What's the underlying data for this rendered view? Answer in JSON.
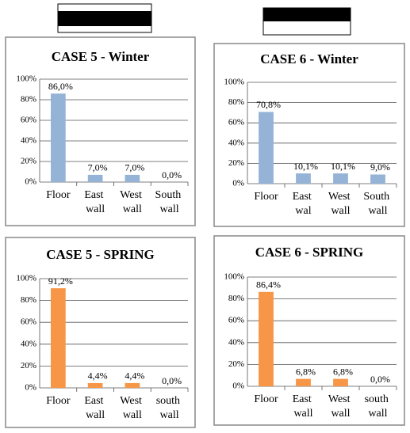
{
  "chart_data": [
    {
      "type": "bar",
      "title": "CASE 5 - Winter",
      "categories": [
        "Floor",
        "East wall",
        "West wall",
        "South wall"
      ],
      "values": [
        86.0,
        7.0,
        7.0,
        0.0
      ],
      "value_labels": [
        "86,0%",
        "7,0%",
        "7,0%",
        "0,0%"
      ],
      "color": "#95b3d7",
      "ylim": [
        0,
        100
      ],
      "yticks": [
        {
          "value": 0,
          "label": "0%"
        },
        {
          "value": 20,
          "label": "20%"
        },
        {
          "value": 40,
          "label": "40%"
        },
        {
          "value": 60,
          "label": "60%"
        },
        {
          "value": 80,
          "label": "80%"
        },
        {
          "value": 100,
          "label": "100%"
        }
      ],
      "grid": true
    },
    {
      "type": "bar",
      "title": "CASE 6 - Winter",
      "categories": [
        "Floor",
        "East wal",
        "West wall",
        "South wall"
      ],
      "values": [
        70.8,
        10.1,
        10.1,
        9.0
      ],
      "value_labels": [
        "70,8%",
        "10,1%",
        "10,1%",
        "9,0%"
      ],
      "color": "#95b3d7",
      "ylim": [
        0,
        100
      ],
      "yticks": [
        {
          "value": 0,
          "label": "0%"
        },
        {
          "value": 20,
          "label": "20%"
        },
        {
          "value": 40,
          "label": "40%"
        },
        {
          "value": 60,
          "label": "60%"
        },
        {
          "value": 80,
          "label": "80%"
        },
        {
          "value": 100,
          "label": "100%"
        }
      ],
      "grid": true
    },
    {
      "type": "bar",
      "title": "CASE 5 - SPRING",
      "categories": [
        "Floor",
        "East wall",
        "West wall",
        "south wall"
      ],
      "values": [
        91.2,
        4.4,
        4.4,
        0.0
      ],
      "value_labels": [
        "91,2%",
        "4,4%",
        "4,4%",
        "0,0%"
      ],
      "color": "#f79646",
      "ylim": [
        0,
        100
      ],
      "yticks": [
        {
          "value": 0,
          "label": "0%"
        },
        {
          "value": 20,
          "label": "20%"
        },
        {
          "value": 40,
          "label": "40%"
        },
        {
          "value": 60,
          "label": "60%"
        },
        {
          "value": 80,
          "label": "80%"
        },
        {
          "value": 100,
          "label": "100%"
        }
      ],
      "grid": true
    },
    {
      "type": "bar",
      "title": "CASE 6 - SPRING",
      "categories": [
        "Floor",
        "East wall",
        "West wall",
        "south wall"
      ],
      "values": [
        86.4,
        6.8,
        6.8,
        0.0
      ],
      "value_labels": [
        "86,4%",
        "6,8%",
        "6,8%",
        "0,0%"
      ],
      "color": "#f79646",
      "ylim": [
        0,
        100
      ],
      "yticks": [
        {
          "value": 0,
          "label": "0%"
        },
        {
          "value": 20,
          "label": "20%"
        },
        {
          "value": 40,
          "label": "40%"
        },
        {
          "value": 60,
          "label": "60%"
        },
        {
          "value": 80,
          "label": "80%"
        },
        {
          "value": 100,
          "label": "100%"
        }
      ],
      "grid": true
    }
  ]
}
